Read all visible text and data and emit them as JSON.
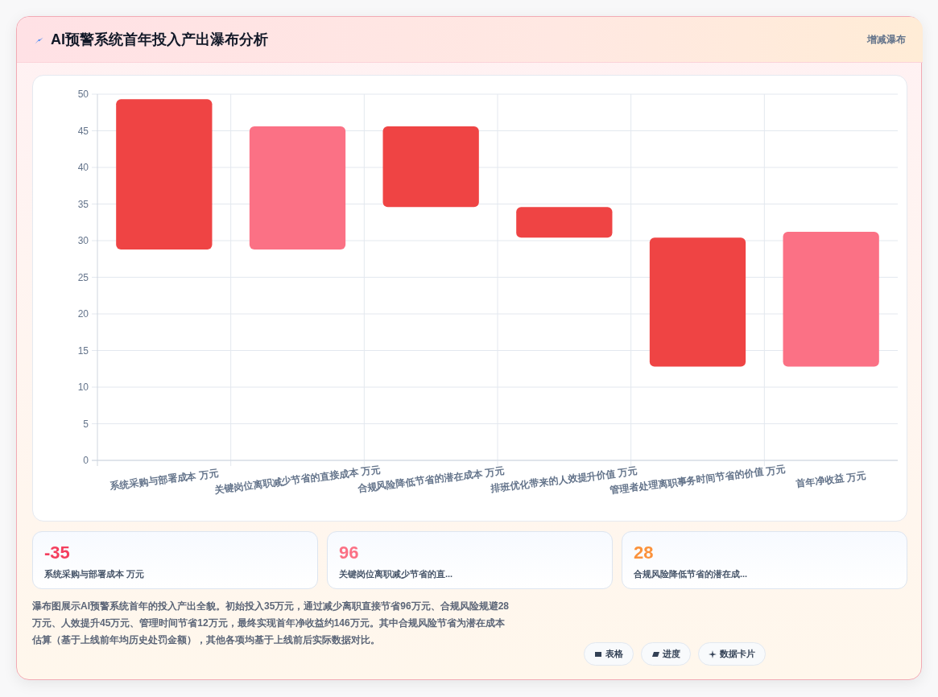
{
  "chart_data": [
    {
      "type": "bar",
      "title": "AI预警系统首年投入产出瀑布分析",
      "annotations": [
        "增减瀑布",
        "瀑布图展示AI预警系统首年的投入产出全貌。初始投入35万元，通过减少离职直接节省96万元、合规风险规避28万元、人效提升45万元、管理时间节省12万元，最终实现首年净收益约146万元。其中合规风险节省为潜在成本估算（基于上线前年均历史处罚金额），其他各项均基于上线前后实际数据对比。",
        "表格",
        "进度",
        "数据卡片"
      ],
      "categories": [
        "系统采购与部署成本 万元",
        "关键岗位离职减少节省的直接成本 万元",
        "合规风险降低节省的潜在成本 万元",
        "排班优化带来的人效提升价值 万元",
        "管理者处理离职事务时间节省的价值 万元",
        "首年净收益 万元"
      ],
      "base": [
        28.8,
        28.8,
        34.6,
        30.4,
        12.8,
        12.8
      ],
      "values": [
        20.5,
        16.8,
        11.0,
        4.2,
        17.6,
        18.4
      ],
      "colors": [
        "#ef4444",
        "#fb7185",
        "#ef4444",
        "#ef4444",
        "#ef4444",
        "#fb7185"
      ],
      "ylim": [
        0,
        50
      ],
      "yticks": [
        0,
        5,
        10,
        15,
        20,
        25,
        30,
        35,
        40,
        45,
        50
      ],
      "grid": true
    },
    {
      "type": "other",
      "annotations": [
        "-35",
        "系统采购与部署成本 万元",
        "96",
        "关键岗位离职减少节省的直...",
        "28",
        "合规风险降低节省的潜在成..."
      ]
    }
  ]
}
